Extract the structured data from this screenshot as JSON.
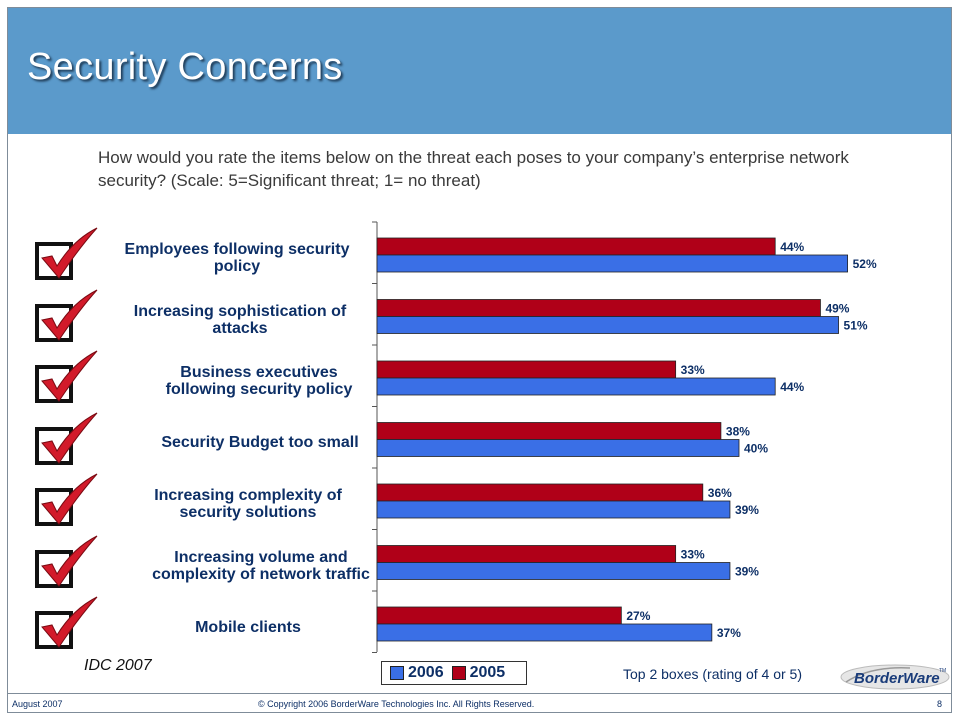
{
  "title": "Security Concerns",
  "question": "How would you rate the items below on the threat each poses to your company’s enterprise network security? (Scale: 5=Significant threat; 1= no threat)",
  "source": "IDC 2007",
  "note": "Top 2 boxes (rating of 4 or 5)",
  "logo_text": "BorderWare",
  "logo_tm": "TM",
  "footer": {
    "date": "August 2007",
    "copyright": "© Copyright 2006 BorderWare Technologies Inc. All Rights Reserved.",
    "page": "8"
  },
  "colors": {
    "header": "#5b9acb",
    "series_2006": "#3a6fe6",
    "series_2005": "#b00018",
    "label": "#0d2f66"
  },
  "chart_data": {
    "type": "bar",
    "orientation": "horizontal",
    "categories": [
      [
        "Employees following security",
        "policy"
      ],
      [
        "Increasing sophistication of",
        "attacks"
      ],
      [
        "Business executives",
        "following security policy"
      ],
      [
        "Security Budget too small"
      ],
      [
        "Increasing complexity of",
        "security solutions"
      ],
      [
        "Increasing volume and",
        "complexity of network traffic"
      ],
      [
        "Mobile clients"
      ]
    ],
    "series": [
      {
        "name": "2006",
        "color": "#3a6fe6",
        "values": [
          52,
          51,
          44,
          40,
          39,
          39,
          37
        ]
      },
      {
        "name": "2005",
        "color": "#b00018",
        "values": [
          44,
          49,
          33,
          38,
          36,
          33,
          27
        ]
      }
    ],
    "value_suffix": "%",
    "xlim": [
      0,
      60
    ],
    "legend": [
      "2006",
      "2005"
    ],
    "legend_position": "bottom"
  }
}
